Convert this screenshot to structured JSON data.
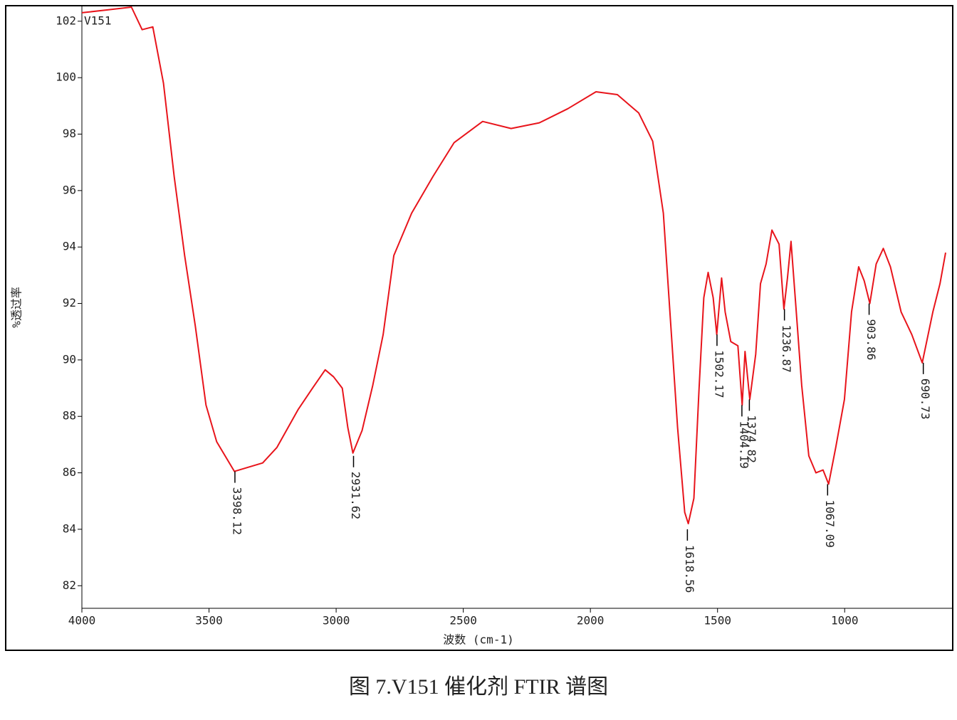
{
  "chart_data": {
    "type": "line",
    "title": "图 7.V151 催化剂 FTIR 谱图",
    "xlabel": "波数 (cm-1)",
    "ylabel": "%透过率",
    "annotation": "V151",
    "color": "#e8141b",
    "xlim": [
      4000,
      575
    ],
    "xticks": [
      4000,
      3500,
      3000,
      2500,
      2000,
      1500,
      1000
    ],
    "x_reversed": true,
    "ylim": [
      81.2,
      102.55
    ],
    "yticks": [
      82,
      84,
      86,
      88,
      90,
      92,
      94,
      96,
      98,
      100,
      102
    ],
    "x": [
      4000,
      3902,
      3805,
      3763,
      3721,
      3679,
      3637,
      3596,
      3554,
      3512,
      3470,
      3400,
      3344,
      3289,
      3233,
      3149,
      3093,
      3043,
      3010,
      2976,
      2954,
      2934,
      2898,
      2856,
      2815,
      2773,
      2703,
      2619,
      2536,
      2424,
      2312,
      2201,
      2089,
      1978,
      1894,
      1810,
      1755,
      1713,
      1685,
      1657,
      1629,
      1615,
      1593,
      1573,
      1554,
      1537,
      1517,
      1503,
      1484,
      1470,
      1448,
      1420,
      1403,
      1392,
      1373,
      1350,
      1331,
      1309,
      1286,
      1258,
      1239,
      1225,
      1211,
      1192,
      1169,
      1141,
      1113,
      1085,
      1063,
      1035,
      1001,
      973,
      945,
      923,
      901,
      876,
      848,
      820,
      778,
      736,
      695,
      653,
      625,
      603
    ],
    "values": [
      102.3,
      102.4,
      102.5,
      101.7,
      101.8,
      99.8,
      96.5,
      93.7,
      91.2,
      88.4,
      87.1,
      86.05,
      86.2,
      86.35,
      86.9,
      88.25,
      89.0,
      89.65,
      89.4,
      89.0,
      87.6,
      86.7,
      87.5,
      89.1,
      90.9,
      93.7,
      95.2,
      96.5,
      97.7,
      98.45,
      98.2,
      98.4,
      98.9,
      99.5,
      99.4,
      98.75,
      97.75,
      95.2,
      91.4,
      87.6,
      84.6,
      84.2,
      85.1,
      88.9,
      92.2,
      93.1,
      92.2,
      90.9,
      92.9,
      91.7,
      90.65,
      90.5,
      88.4,
      90.3,
      88.6,
      90.2,
      92.7,
      93.4,
      94.6,
      94.1,
      91.8,
      92.9,
      94.2,
      91.9,
      89.1,
      86.6,
      86.0,
      86.1,
      85.6,
      86.9,
      88.6,
      91.7,
      93.3,
      92.8,
      92.0,
      93.4,
      93.95,
      93.3,
      91.7,
      90.9,
      89.9,
      91.7,
      92.7,
      93.8
    ],
    "peaks": [
      {
        "x": 3398.12,
        "y": 86.05
      },
      {
        "x": 2931.62,
        "y": 86.6
      },
      {
        "x": 1618.56,
        "y": 84.0
      },
      {
        "x": 1502.17,
        "y": 90.9
      },
      {
        "x": 1404.19,
        "y": 88.4
      },
      {
        "x": 1374.82,
        "y": 88.6
      },
      {
        "x": 1236.87,
        "y": 91.8
      },
      {
        "x": 1067.09,
        "y": 85.6
      },
      {
        "x": 903.86,
        "y": 92.0
      },
      {
        "x": 690.73,
        "y": 89.9
      }
    ]
  }
}
